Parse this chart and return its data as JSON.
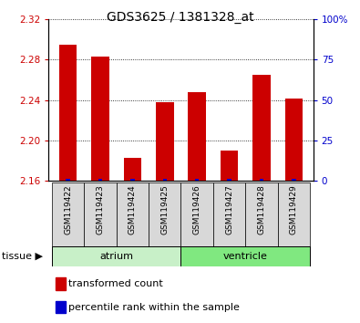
{
  "title": "GDS3625 / 1381328_at",
  "samples": [
    "GSM119422",
    "GSM119423",
    "GSM119424",
    "GSM119425",
    "GSM119426",
    "GSM119427",
    "GSM119428",
    "GSM119429"
  ],
  "red_values": [
    2.295,
    2.283,
    2.183,
    2.238,
    2.248,
    2.19,
    2.265,
    2.242
  ],
  "blue_values": [
    1.5,
    1.5,
    1.5,
    1.5,
    1.5,
    1.5,
    1.5,
    1.5
  ],
  "ylim_left": [
    2.16,
    2.32
  ],
  "ylim_right": [
    0,
    100
  ],
  "yticks_left": [
    2.16,
    2.2,
    2.24,
    2.28,
    2.32
  ],
  "yticks_right": [
    0,
    25,
    50,
    75,
    100
  ],
  "ytick_labels_right": [
    "0",
    "25",
    "50",
    "75",
    "100%"
  ],
  "baseline": 2.16,
  "tissue_groups": [
    {
      "label": "atrium",
      "start": 0,
      "end": 4,
      "color": "#c8f0c8"
    },
    {
      "label": "ventricle",
      "start": 4,
      "end": 8,
      "color": "#80e880"
    }
  ],
  "bar_width": 0.55,
  "red_color": "#cc0000",
  "blue_color": "#0000cc",
  "grid_color": "#000000",
  "bg_color": "#d8d8d8",
  "plot_bg": "#ffffff",
  "title_color": "#000000",
  "title_fontsize": 10,
  "tick_fontsize": 7.5,
  "sample_fontsize": 6.5,
  "label_fontsize": 8,
  "legend_fontsize": 8
}
